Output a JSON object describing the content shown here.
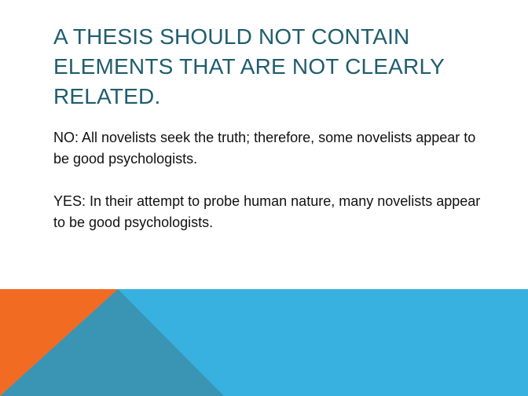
{
  "slide": {
    "title": "A thesis should not contain elements that are not clearly related.",
    "paragraphs": [
      "NO:  All novelists seek the truth; therefore, some novelists appear to be good psychologists.",
      "YES: In their attempt to probe human nature, many novelists appear to be good psychologists."
    ]
  },
  "theme": {
    "title_color": "#1f5d6e",
    "blue": "#38b1e0",
    "teal": "#3a94b4",
    "orange": "#f26b22"
  }
}
